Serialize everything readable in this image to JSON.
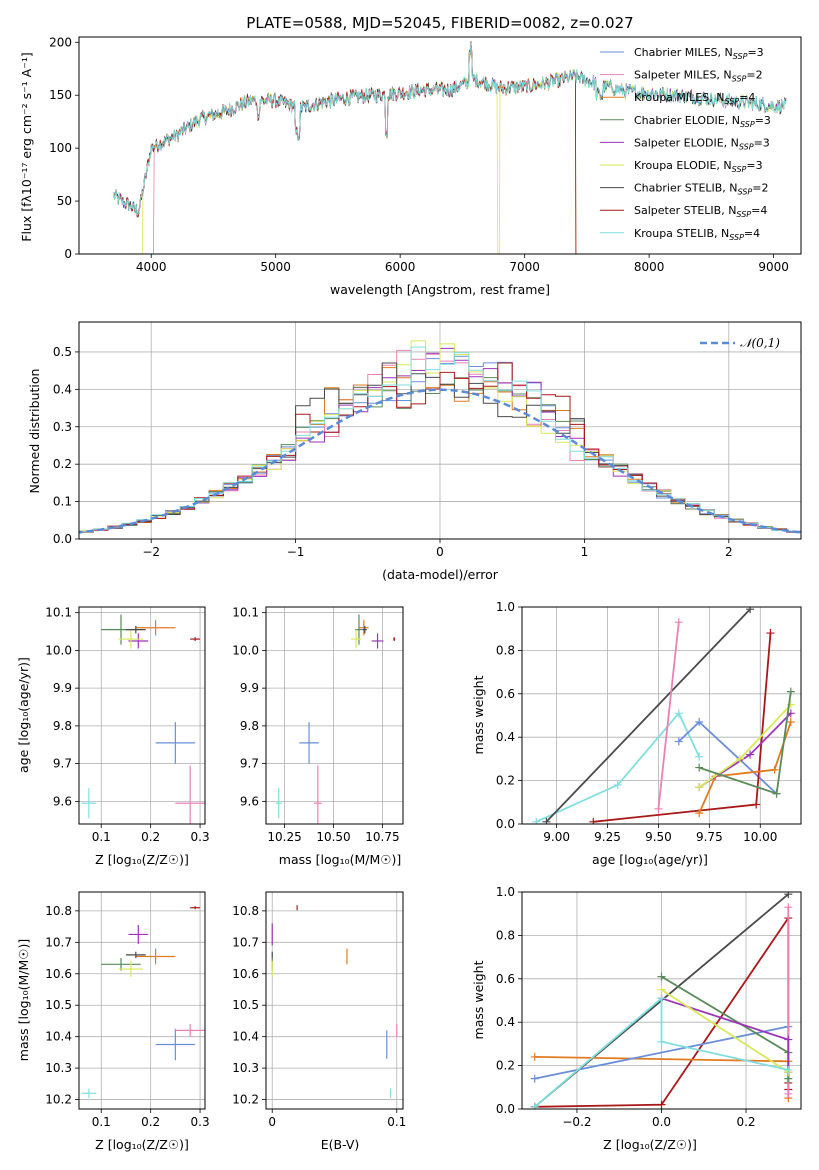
{
  "colors": {
    "chabrier_miles": "#6a8fd8",
    "salpeter_miles": "#e882b6",
    "kroupa_miles": "#e07b20",
    "chabrier_elodie": "#5a8a5a",
    "salpeter_elodie": "#9a35b8",
    "kroupa_elodie": "#d8e85a",
    "chabrier_stelib": "#4a4a4a",
    "salpeter_stelib": "#a81818",
    "kroupa_stelib": "#80dede",
    "normal": "#5a8ad8"
  },
  "chart_data": [
    {
      "id": "spectrum",
      "type": "line",
      "title": "PLATE=0588, MJD=52045, FIBERID=0082, z=0.027",
      "xlabel": "wavelength [Angstrom, rest frame]",
      "ylabel": "Flux [fλ10⁻¹⁷ erg cm⁻² s⁻¹ A⁻¹]",
      "xlim": [
        3420,
        9220
      ],
      "ylim": [
        0,
        205
      ],
      "xticks": [
        4000,
        5000,
        6000,
        7000,
        8000,
        9000
      ],
      "yticks": [
        0,
        50,
        100,
        150,
        200
      ],
      "legend_position": "upper-right",
      "series_names": [
        "Chabrier MILES, NSSP=3",
        "Salpeter MILES, NSSP=2",
        "Kroupa MILES, NSSP=4",
        "Chabrier ELODIE, NSSP=3",
        "Salpeter ELODIE, NSSP=3",
        "Kroupa ELODIE, NSSP=3",
        "Chabrier STELIB, NSSP=2",
        "Salpeter STELIB, NSSP=4",
        "Kroupa STELIB, NSSP=4"
      ],
      "continuum": [
        [
          3700,
          55
        ],
        [
          3900,
          40
        ],
        [
          4000,
          100
        ],
        [
          4200,
          112
        ],
        [
          4400,
          128
        ],
        [
          4600,
          135
        ],
        [
          4800,
          145
        ],
        [
          5000,
          145
        ],
        [
          5200,
          138
        ],
        [
          5400,
          144
        ],
        [
          5600,
          148
        ],
        [
          5800,
          150
        ],
        [
          6000,
          152
        ],
        [
          6200,
          155
        ],
        [
          6400,
          155
        ],
        [
          6600,
          165
        ],
        [
          6800,
          157
        ],
        [
          7000,
          158
        ],
        [
          7200,
          162
        ],
        [
          7400,
          168
        ],
        [
          7600,
          160
        ],
        [
          7800,
          154
        ],
        [
          8000,
          152
        ],
        [
          8200,
          150
        ],
        [
          8400,
          148
        ],
        [
          8600,
          145
        ],
        [
          8800,
          143
        ],
        [
          9000,
          140
        ],
        [
          9100,
          140
        ]
      ]
    },
    {
      "id": "residuals",
      "type": "histogram",
      "xlabel": "(data-model)/error",
      "ylabel": "Normed distribution",
      "xlim": [
        -2.5,
        2.5
      ],
      "ylim": [
        0,
        0.58
      ],
      "xticks": [
        -2,
        -1,
        0,
        1,
        2
      ],
      "yticks": [
        0.0,
        0.1,
        0.2,
        0.3,
        0.4,
        0.5
      ],
      "grid": true,
      "legend": "𝒩(0,1)",
      "legend_position": "upper-right",
      "bin_width": 0.1,
      "normal_mean": 0,
      "normal_sigma": 1
    },
    {
      "id": "age-vs-Z",
      "type": "errorbar",
      "xlabel": "Z [log₁₀(Z/Z☉)]",
      "ylabel": "age  [log₁₀(age/yr)]",
      "xlim": [
        0.055,
        0.31
      ],
      "ylim": [
        9.54,
        10.115
      ],
      "xticks": [
        0.1,
        0.2,
        0.3
      ],
      "yticks": [
        9.6,
        9.7,
        9.8,
        9.9,
        10.0,
        10.1
      ],
      "grid": true,
      "points": [
        {
          "c": "chabrier_miles",
          "x": 0.25,
          "y": 9.755,
          "ex": 0.04,
          "ey": 0.055
        },
        {
          "c": "salpeter_miles",
          "x": 0.28,
          "y": 9.595,
          "ex": 0.03,
          "ey": 0.1
        },
        {
          "c": "kroupa_miles",
          "x": 0.21,
          "y": 10.06,
          "ex": 0.04,
          "ey": 0.02
        },
        {
          "c": "chabrier_elodie",
          "x": 0.14,
          "y": 10.055,
          "ex": 0.04,
          "ey": 0.04
        },
        {
          "c": "salpeter_elodie",
          "x": 0.175,
          "y": 10.025,
          "ex": 0.02,
          "ey": 0.02
        },
        {
          "c": "kroupa_elodie",
          "x": 0.16,
          "y": 10.03,
          "ex": 0.025,
          "ey": 0.025
        },
        {
          "c": "chabrier_stelib",
          "x": 0.17,
          "y": 10.055,
          "ex": 0.02,
          "ey": 0.01
        },
        {
          "c": "salpeter_stelib",
          "x": 0.29,
          "y": 10.03,
          "ex": 0.01,
          "ey": 0.005
        },
        {
          "c": "kroupa_stelib",
          "x": 0.075,
          "y": 9.595,
          "ex": 0.015,
          "ey": 0.04
        }
      ]
    },
    {
      "id": "age-vs-mass",
      "type": "errorbar",
      "xlabel": "mass [log₁₀(M/M☉)]",
      "ylabel": "",
      "xlim": [
        10.155,
        10.855
      ],
      "ylim": [
        9.54,
        10.115
      ],
      "xticks": [
        10.25,
        10.5,
        10.75
      ],
      "xtick_labels": [
        "10.25",
        "10.50",
        "10.75"
      ],
      "yticks": [
        9.6,
        9.7,
        9.8,
        9.9,
        10.0,
        10.1
      ],
      "grid": true,
      "points": [
        {
          "c": "chabrier_miles",
          "x": 10.375,
          "y": 9.755,
          "ex": 0.05,
          "ey": 0.055
        },
        {
          "c": "salpeter_miles",
          "x": 10.42,
          "y": 9.595,
          "ex": 0.02,
          "ey": 0.1
        },
        {
          "c": "kroupa_miles",
          "x": 10.655,
          "y": 10.06,
          "ex": 0.025,
          "ey": 0.02
        },
        {
          "c": "chabrier_elodie",
          "x": 10.63,
          "y": 10.055,
          "ex": 0.02,
          "ey": 0.04
        },
        {
          "c": "salpeter_elodie",
          "x": 10.725,
          "y": 10.025,
          "ex": 0.03,
          "ey": 0.02
        },
        {
          "c": "kroupa_elodie",
          "x": 10.615,
          "y": 10.03,
          "ex": 0.025,
          "ey": 0.025
        },
        {
          "c": "chabrier_stelib",
          "x": 10.66,
          "y": 10.055,
          "ex": 0.01,
          "ey": 0.01
        },
        {
          "c": "salpeter_stelib",
          "x": 10.81,
          "y": 10.03,
          "ex": 0.005,
          "ey": 0.005
        },
        {
          "c": "kroupa_stelib",
          "x": 10.22,
          "y": 9.595,
          "ex": 0.015,
          "ey": 0.04
        }
      ]
    },
    {
      "id": "weight-vs-age",
      "type": "line",
      "xlabel": "age  [log₁₀(age/yr)]",
      "ylabel": "mass weight",
      "xlim": [
        8.83,
        10.2
      ],
      "ylim": [
        0,
        1.0
      ],
      "xticks": [
        9.0,
        9.25,
        9.5,
        9.75,
        10.0
      ],
      "xtick_labels": [
        "9.00",
        "9.25",
        "9.50",
        "9.75",
        "10.00"
      ],
      "yticks": [
        0.0,
        0.2,
        0.4,
        0.6,
        0.8,
        1.0
      ],
      "grid": true,
      "series": [
        {
          "c": "kroupa_stelib",
          "points": [
            [
              8.9,
              0.01
            ],
            [
              9.3,
              0.18
            ],
            [
              9.6,
              0.51
            ],
            [
              9.7,
              0.31
            ]
          ]
        },
        {
          "c": "chabrier_stelib",
          "points": [
            [
              8.95,
              0.01
            ],
            [
              9.95,
              0.99
            ]
          ]
        },
        {
          "c": "salpeter_miles",
          "points": [
            [
              9.5,
              0.07
            ],
            [
              9.6,
              0.93
            ]
          ]
        },
        {
          "c": "chabrier_miles",
          "points": [
            [
              9.6,
              0.38
            ],
            [
              9.7,
              0.47
            ],
            [
              10.08,
              0.14
            ]
          ]
        },
        {
          "c": "salpeter_stelib",
          "points": [
            [
              9.18,
              0.01
            ],
            [
              9.98,
              0.09
            ],
            [
              10.05,
              0.88
            ]
          ]
        },
        {
          "c": "kroupa_miles",
          "points": [
            [
              9.7,
              0.05
            ],
            [
              9.78,
              0.22
            ],
            [
              10.07,
              0.25
            ],
            [
              10.15,
              0.47
            ]
          ]
        },
        {
          "c": "salpeter_elodie",
          "points": [
            [
              9.7,
              0.17
            ],
            [
              9.95,
              0.32
            ],
            [
              10.15,
              0.51
            ]
          ]
        },
        {
          "c": "kroupa_elodie",
          "points": [
            [
              9.7,
              0.17
            ],
            [
              9.9,
              0.3
            ],
            [
              10.15,
              0.55
            ]
          ]
        },
        {
          "c": "chabrier_elodie",
          "points": [
            [
              9.7,
              0.26
            ],
            [
              10.08,
              0.14
            ],
            [
              10.15,
              0.61
            ]
          ]
        }
      ]
    },
    {
      "id": "mass-vs-Z",
      "type": "errorbar",
      "xlabel": "Z [log₁₀(Z/Z☉)]",
      "ylabel": "mass [log₁₀(M/M☉)]",
      "xlim": [
        0.055,
        0.31
      ],
      "ylim": [
        10.17,
        10.86
      ],
      "xticks": [
        0.1,
        0.2,
        0.3
      ],
      "yticks": [
        10.2,
        10.3,
        10.4,
        10.5,
        10.6,
        10.7,
        10.8
      ],
      "grid": true,
      "points": [
        {
          "c": "chabrier_miles",
          "x": 0.25,
          "y": 10.375,
          "ex": 0.04,
          "ey": 0.05
        },
        {
          "c": "salpeter_miles",
          "x": 0.28,
          "y": 10.42,
          "ex": 0.03,
          "ey": 0.02
        },
        {
          "c": "kroupa_miles",
          "x": 0.21,
          "y": 10.655,
          "ex": 0.04,
          "ey": 0.025
        },
        {
          "c": "chabrier_elodie",
          "x": 0.14,
          "y": 10.63,
          "ex": 0.04,
          "ey": 0.02
        },
        {
          "c": "salpeter_elodie",
          "x": 0.175,
          "y": 10.725,
          "ex": 0.02,
          "ey": 0.03
        },
        {
          "c": "kroupa_elodie",
          "x": 0.16,
          "y": 10.615,
          "ex": 0.025,
          "ey": 0.025
        },
        {
          "c": "chabrier_stelib",
          "x": 0.17,
          "y": 10.66,
          "ex": 0.02,
          "ey": 0.01
        },
        {
          "c": "salpeter_stelib",
          "x": 0.29,
          "y": 10.81,
          "ex": 0.01,
          "ey": 0.005
        },
        {
          "c": "kroupa_stelib",
          "x": 0.075,
          "y": 10.22,
          "ex": 0.015,
          "ey": 0.015
        }
      ]
    },
    {
      "id": "mass-vs-ebv",
      "type": "errorbar",
      "xlabel": "E(B-V)",
      "ylabel": "",
      "xlim": [
        -0.005,
        0.105
      ],
      "ylim": [
        10.17,
        10.86
      ],
      "xticks": [
        0.0,
        0.1
      ],
      "yticks": [
        10.2,
        10.3,
        10.4,
        10.5,
        10.6,
        10.7,
        10.8
      ],
      "grid": true,
      "points": [
        {
          "c": "chabrier_miles",
          "x": 0.092,
          "y": 10.375,
          "ex": 0,
          "ey": 0.045
        },
        {
          "c": "salpeter_miles",
          "x": 0.1,
          "y": 10.42,
          "ex": 0,
          "ey": 0.02
        },
        {
          "c": "kroupa_miles",
          "x": 0.06,
          "y": 10.655,
          "ex": 0,
          "ey": 0.025
        },
        {
          "c": "chabrier_elodie",
          "x": 0.0,
          "y": 10.63,
          "ex": 0,
          "ey": 0.02
        },
        {
          "c": "salpeter_elodie",
          "x": 0.0,
          "y": 10.725,
          "ex": 0,
          "ey": 0.035
        },
        {
          "c": "kroupa_elodie",
          "x": 0.0,
          "y": 10.615,
          "ex": 0,
          "ey": 0.025
        },
        {
          "c": "chabrier_stelib",
          "x": 0.0,
          "y": 10.66,
          "ex": 0,
          "ey": 0.01
        },
        {
          "c": "salpeter_stelib",
          "x": 0.02,
          "y": 10.81,
          "ex": 0,
          "ey": 0.008
        },
        {
          "c": "kroupa_stelib",
          "x": 0.095,
          "y": 10.22,
          "ex": 0,
          "ey": 0.015
        }
      ]
    },
    {
      "id": "weight-vs-Z",
      "type": "line",
      "xlabel": "Z [log₁₀(Z/Z☉)]",
      "ylabel": "mass weight",
      "xlim": [
        -0.33,
        0.33
      ],
      "ylim": [
        0,
        1.0
      ],
      "xticks": [
        -0.2,
        0.0,
        0.2
      ],
      "xtick_labels": [
        "−0.2",
        "0.0",
        "0.2"
      ],
      "yticks": [
        0.0,
        0.2,
        0.4,
        0.6,
        0.8,
        1.0
      ],
      "grid": true,
      "series": [
        {
          "c": "chabrier_stelib",
          "points": [
            [
              -0.3,
              0.01
            ],
            [
              0.3,
              0.99
            ]
          ]
        },
        {
          "c": "salpeter_stelib",
          "points": [
            [
              -0.3,
              0.01
            ],
            [
              0.0,
              0.02
            ],
            [
              0.3,
              0.88
            ],
            [
              0.3,
              0.12
            ],
            [
              0.3,
              0.09
            ]
          ]
        },
        {
          "c": "kroupa_miles",
          "points": [
            [
              -0.3,
              0.24
            ],
            [
              0.3,
              0.22
            ],
            [
              0.3,
              0.05
            ]
          ]
        },
        {
          "c": "chabrier_miles",
          "points": [
            [
              -0.3,
              0.14
            ],
            [
              0.3,
              0.38
            ]
          ]
        },
        {
          "c": "salpeter_miles",
          "points": [
            [
              0.3,
              0.93
            ],
            [
              0.3,
              0.07
            ]
          ]
        },
        {
          "c": "chabrier_elodie",
          "points": [
            [
              0.0,
              0.61
            ],
            [
              0.3,
              0.26
            ],
            [
              0.3,
              0.14
            ]
          ]
        },
        {
          "c": "salpeter_elodie",
          "points": [
            [
              0.0,
              0.51
            ],
            [
              0.3,
              0.32
            ],
            [
              0.3,
              0.17
            ]
          ]
        },
        {
          "c": "kroupa_elodie",
          "points": [
            [
              0.0,
              0.55
            ],
            [
              0.3,
              0.17
            ]
          ]
        },
        {
          "c": "kroupa_stelib",
          "points": [
            [
              -0.3,
              0.01
            ],
            [
              0.0,
              0.51
            ],
            [
              0.0,
              0.31
            ],
            [
              0.3,
              0.18
            ]
          ]
        }
      ]
    }
  ]
}
